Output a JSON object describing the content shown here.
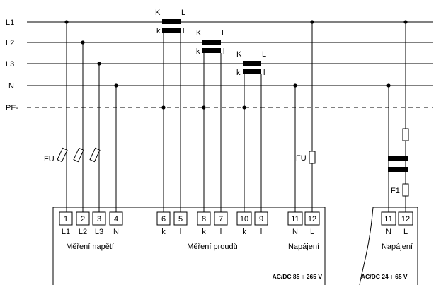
{
  "lines": {
    "l1": "L1",
    "l2": "L2",
    "l3": "L3",
    "n": "N",
    "pe": "PE-"
  },
  "ct_labels": {
    "primary_a": "K",
    "primary_b": "L",
    "secondary_a": "k",
    "secondary_b": "l"
  },
  "fuses": {
    "voltage": "FU",
    "supply": "FU",
    "dc": "F1"
  },
  "terminals": {
    "t1": "1",
    "t2": "2",
    "t3": "3",
    "t4": "4",
    "t6": "6",
    "t5": "5",
    "t8": "8",
    "t7": "7",
    "t10": "10",
    "t9": "9",
    "t11": "11",
    "t12": "12",
    "dc_t11": "11",
    "dc_t12": "12"
  },
  "terminal_labels": {
    "l1": "L1",
    "l2": "L2",
    "l3": "L3",
    "n": "N",
    "k1": "k",
    "i1": "l",
    "k2": "k",
    "i2": "l",
    "k3": "k",
    "i3": "l",
    "sup_n": "N",
    "sup_l": "L",
    "dc_n": "N",
    "dc_l": "L"
  },
  "groups": {
    "voltage": "Měření napětí",
    "current": "Měření proudů",
    "supply": "Napájení",
    "dc_supply": "Napájení"
  },
  "ratings": {
    "ac": "AC/DC 85 ÷ 265 V",
    "dc": "AC/DC 24 ÷ 65  V"
  }
}
